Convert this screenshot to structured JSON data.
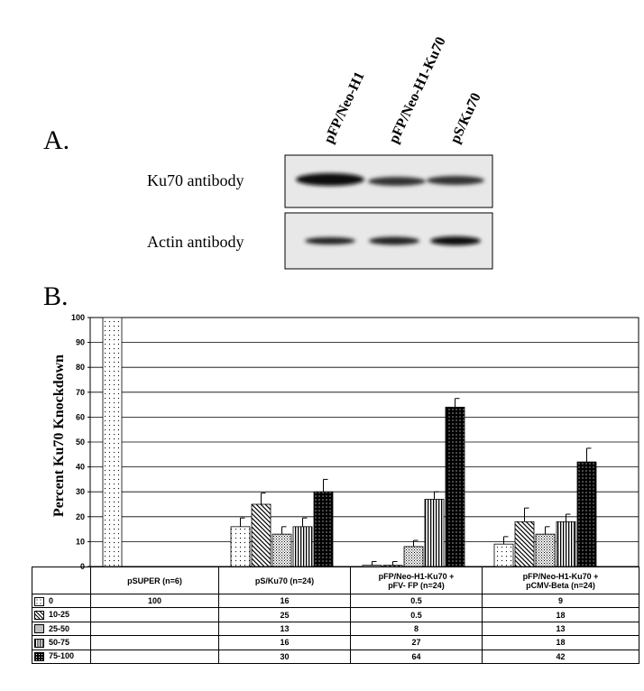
{
  "panel_a": {
    "label": "A.",
    "lanes": [
      "pFP/Neo-H1",
      "pFP/Neo-H1-Ku70",
      "pS/Ku70"
    ],
    "rows": [
      "Ku70 antibody",
      "Actin antibody"
    ]
  },
  "panel_b": {
    "label": "B."
  },
  "chart_data": {
    "type": "bar",
    "ylabel": "Percent Ku70 Knockdown",
    "categories": [
      "pSUPER (n=6)",
      "pS/Ku70 (n=24)",
      "pFP/Neo-H1-Ku70 +\npFV- FP (n=24)",
      "pFP/Neo-H1-Ku70 +\npCMV-Beta (n=24)"
    ],
    "series": [
      {
        "name": "0",
        "values": [
          100,
          16,
          0.5,
          9
        ],
        "errors": [
          null,
          3.5,
          1.5,
          3
        ]
      },
      {
        "name": "10-25",
        "values": [
          null,
          25,
          0.5,
          18
        ],
        "errors": [
          null,
          4.5,
          1.5,
          5.5
        ]
      },
      {
        "name": "25-50",
        "values": [
          null,
          13,
          8,
          13
        ],
        "errors": [
          null,
          3,
          2.5,
          3
        ]
      },
      {
        "name": "50-75",
        "values": [
          null,
          16,
          27,
          18
        ],
        "errors": [
          null,
          3.5,
          3,
          3
        ]
      },
      {
        "name": "75-100",
        "values": [
          null,
          30,
          64,
          42
        ],
        "errors": [
          null,
          5,
          3.5,
          5.5
        ]
      }
    ],
    "ylim": [
      0,
      100
    ],
    "yticks": [
      0,
      10,
      20,
      30,
      40,
      50,
      60,
      70,
      80,
      90,
      100
    ],
    "grid": true
  }
}
